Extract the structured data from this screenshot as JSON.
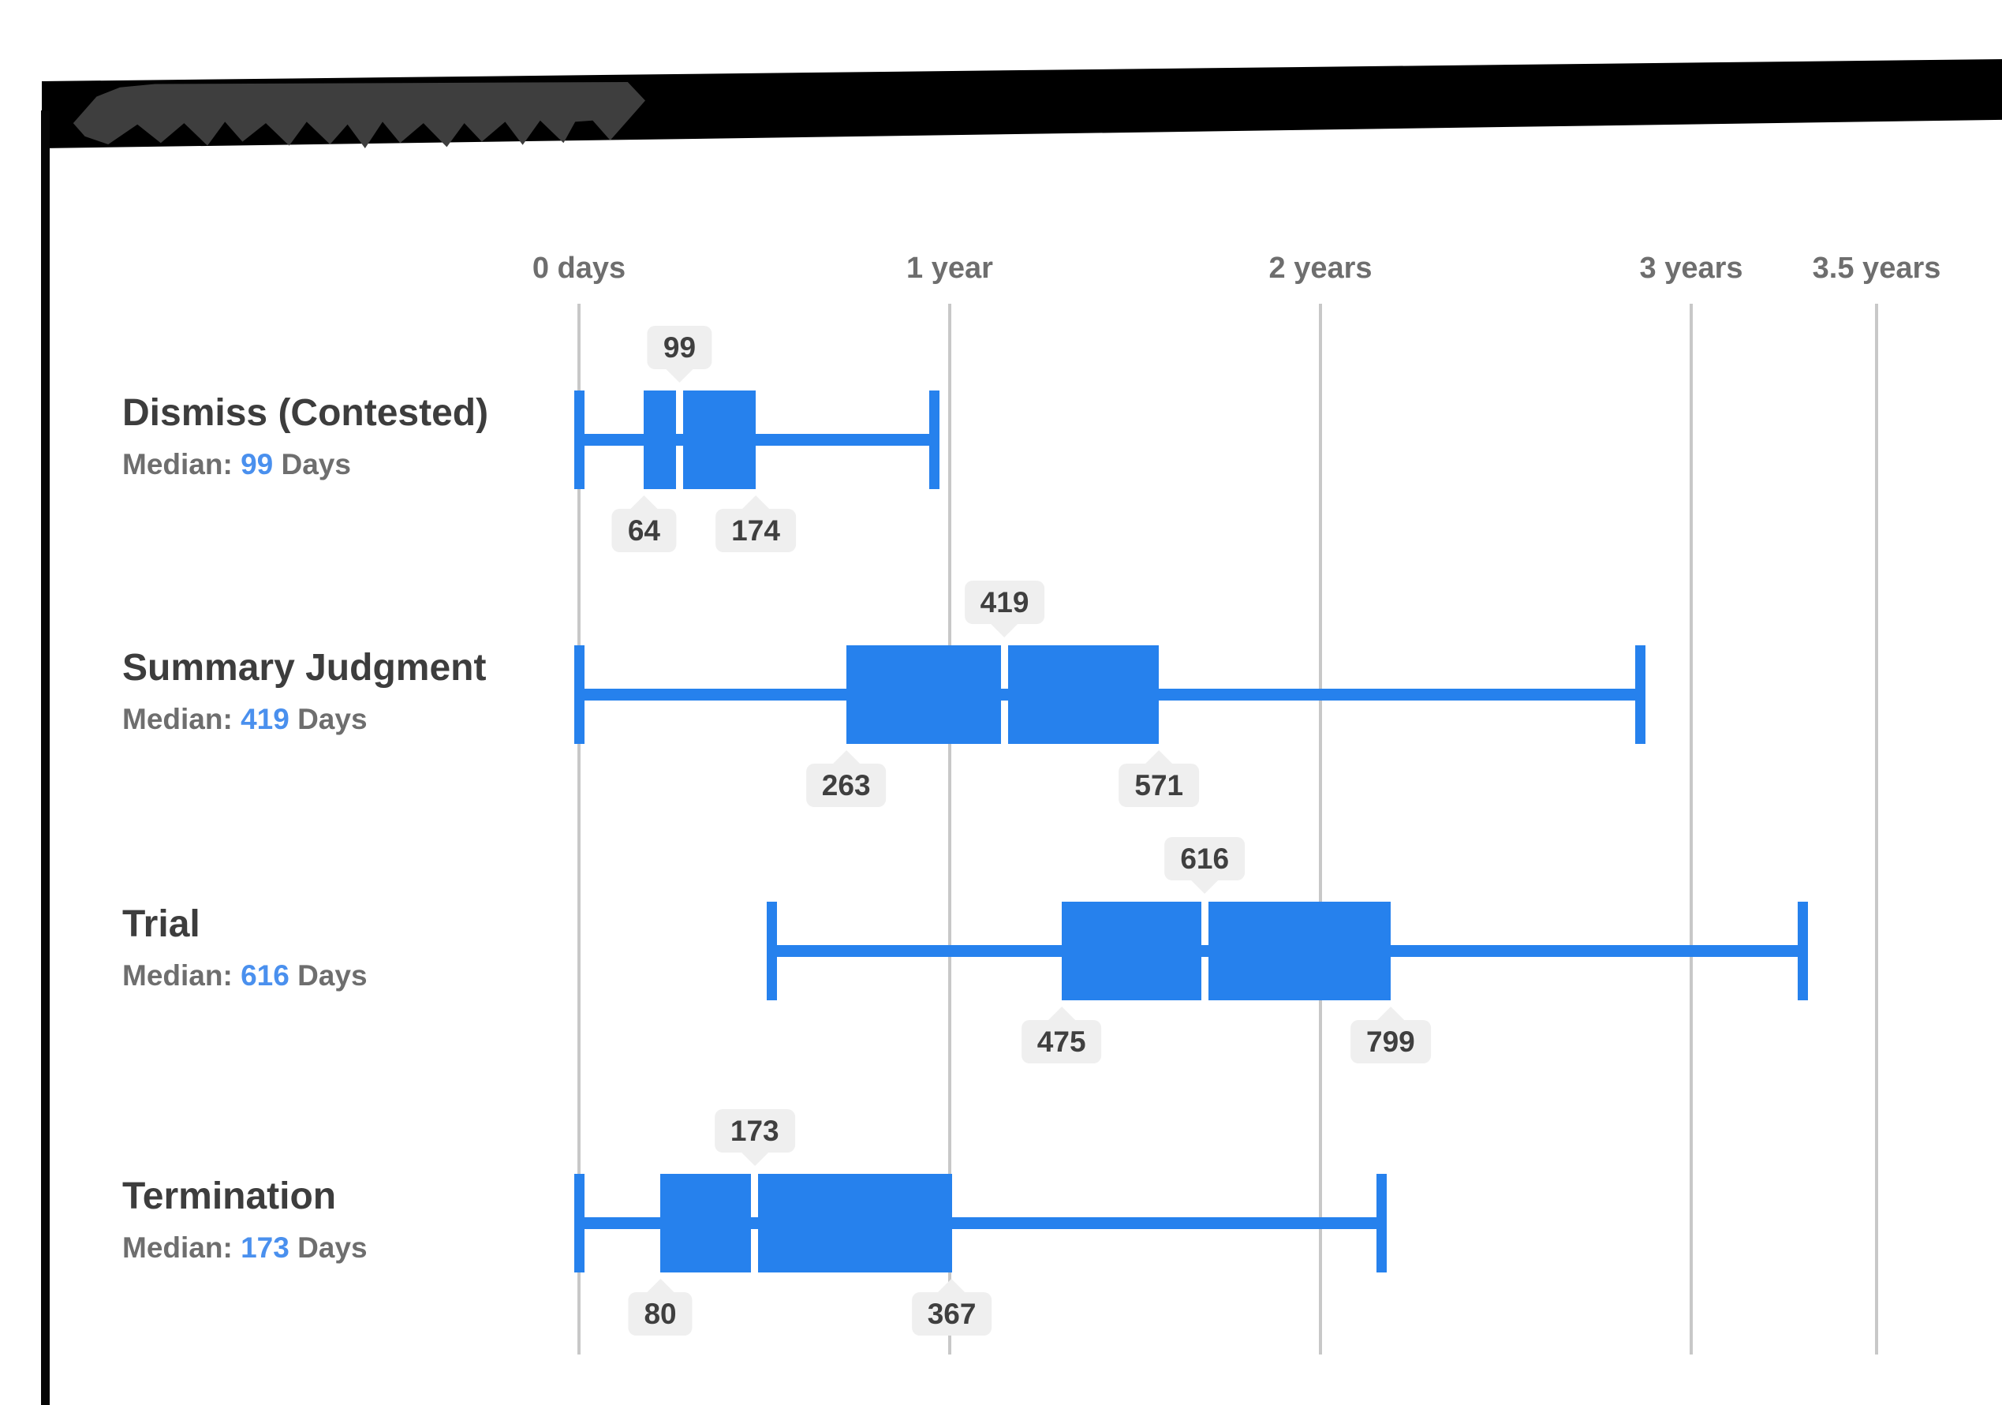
{
  "header": {
    "bar_color": "#000000",
    "blob_color": "#3e3e3e"
  },
  "chart_data": {
    "type": "boxplot",
    "orientation": "horizontal",
    "unit": "days",
    "gridlines": true,
    "x_axis": {
      "range_days": [
        0,
        1400
      ],
      "ticks": [
        {
          "label": "0 days",
          "days": 0
        },
        {
          "label": "1 year",
          "days": 365
        },
        {
          "label": "2 years",
          "days": 730
        },
        {
          "label": "3 years",
          "days": 1095
        },
        {
          "label": "3.5 years",
          "days": 1277.5
        }
      ]
    },
    "median_label_prefix": "Median:",
    "median_label_suffix": "Days",
    "whiskers_estimated": true,
    "rows": [
      {
        "label": "Dismiss (Contested)",
        "median": 99,
        "q1": 64,
        "q3": 174,
        "whisker_low": 0,
        "whisker_high": 350
      },
      {
        "label": "Summary Judgment",
        "median": 419,
        "q1": 263,
        "q3": 571,
        "whisker_low": 0,
        "whisker_high": 1045
      },
      {
        "label": "Trial",
        "median": 616,
        "q1": 475,
        "q3": 799,
        "whisker_low": 190,
        "whisker_high": 1205
      },
      {
        "label": "Termination",
        "median": 173,
        "q1": 80,
        "q3": 367,
        "whisker_low": 0,
        "whisker_high": 790
      }
    ],
    "colors": {
      "box": "#2681ed",
      "median_value_text": "#4a90ee",
      "label_text": "#3d3d3d",
      "muted_text": "#6e6e6e",
      "badge_bg": "#efefef",
      "badge_text": "#3f3f3f",
      "gridline": "#c8c8c8"
    }
  }
}
